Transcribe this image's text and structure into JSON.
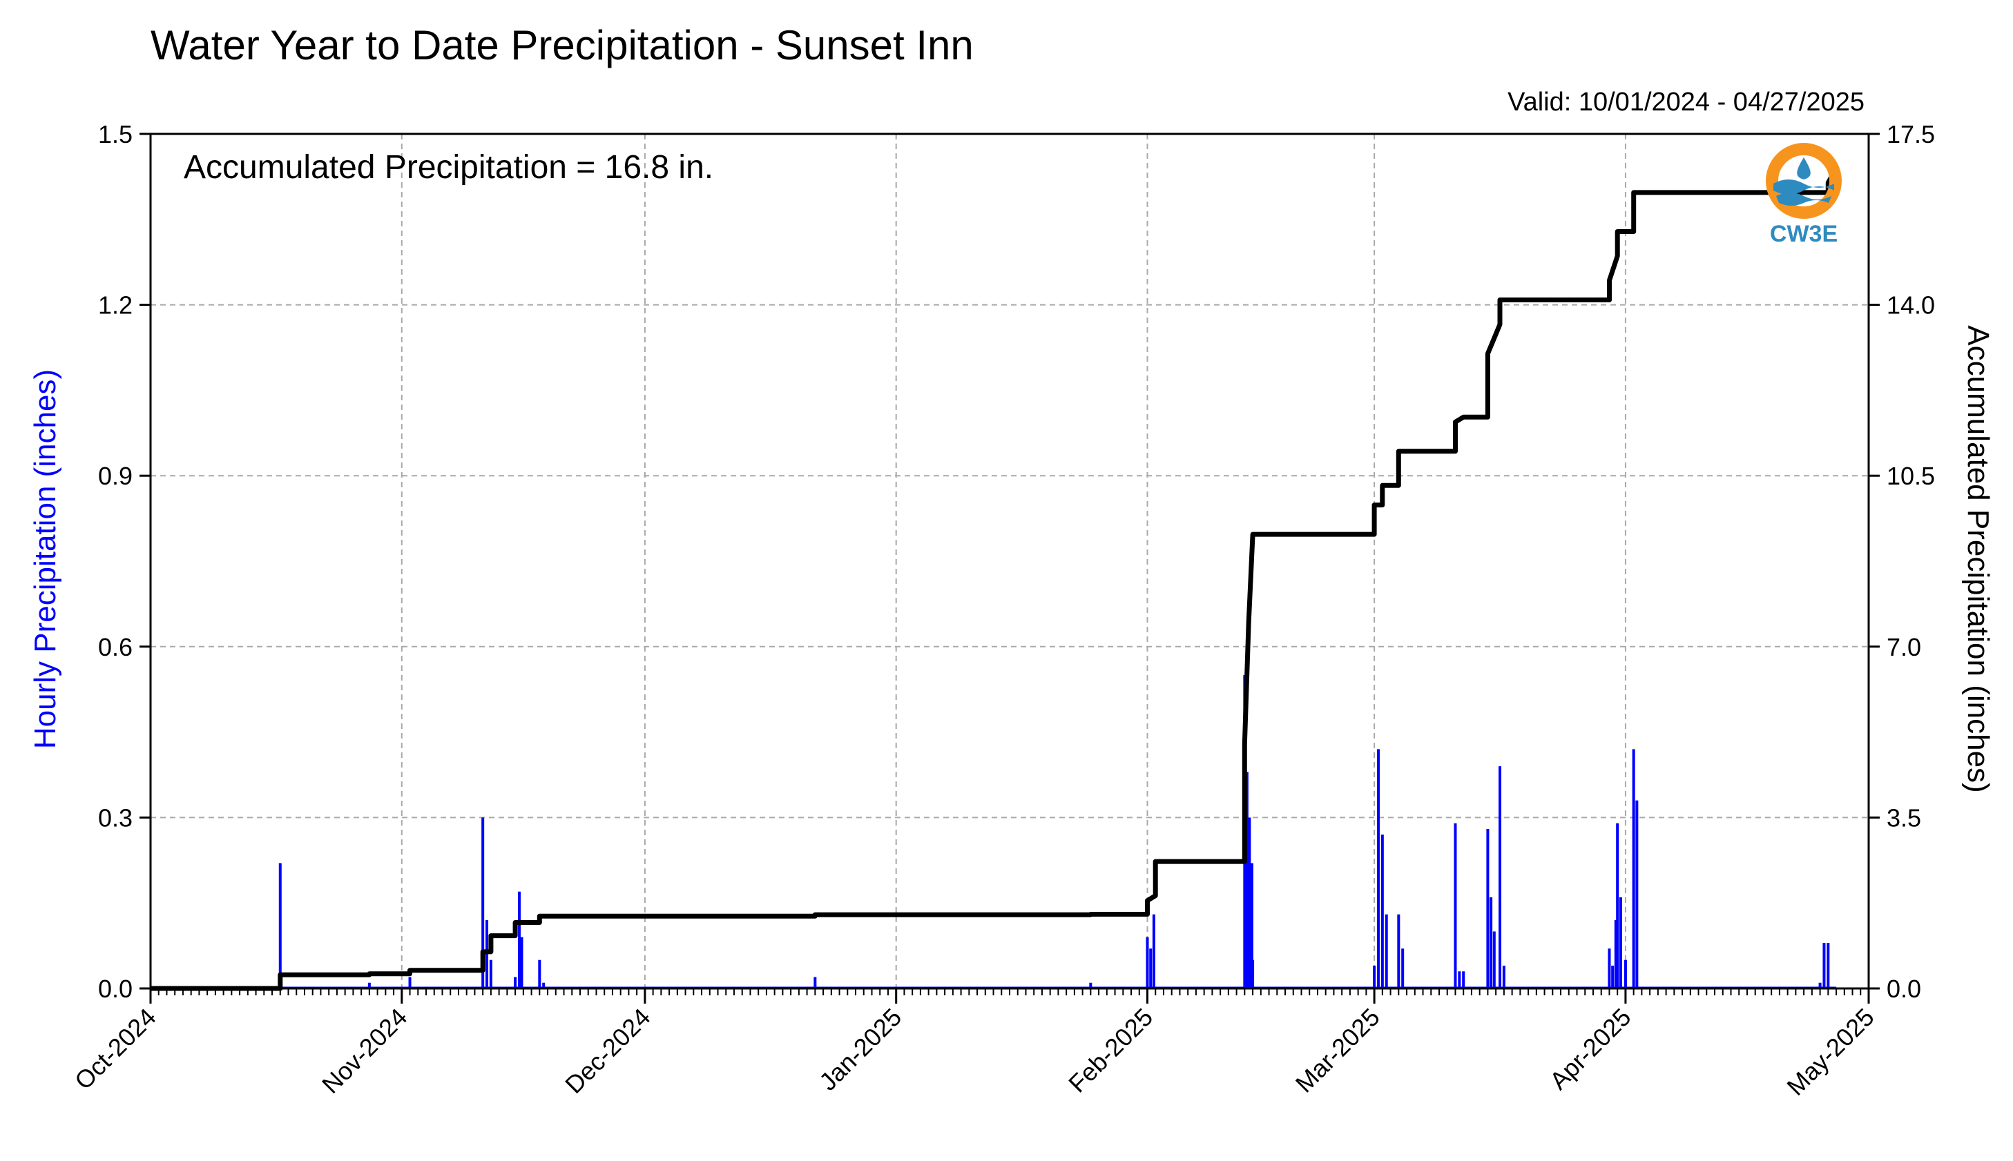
{
  "chart_data": {
    "type": "bar",
    "title": "Water Year to Date Precipitation - Sunset Inn",
    "subtitle": "Valid: 10/01/2024 - 04/27/2025",
    "annotation": "Accumulated Precipitation = 16.8 in.",
    "ylabel_left": "Hourly Precipitation (inches)",
    "ylabel_right": "Accumulated Precipitation (inches)",
    "xlim": [
      "2024-10-01",
      "2025-05-01"
    ],
    "ylim_left": [
      0,
      1.5
    ],
    "ylim_right": [
      0,
      17.5
    ],
    "grid": true,
    "x_ticks": [
      {
        "date": "2024-10-01",
        "label": "Oct-2024"
      },
      {
        "date": "2024-11-01",
        "label": "Nov-2024"
      },
      {
        "date": "2024-12-01",
        "label": "Dec-2024"
      },
      {
        "date": "2025-01-01",
        "label": "Jan-2025"
      },
      {
        "date": "2025-02-01",
        "label": "Feb-2025"
      },
      {
        "date": "2025-03-01",
        "label": "Mar-2025"
      },
      {
        "date": "2025-04-01",
        "label": "Apr-2025"
      },
      {
        "date": "2025-05-01",
        "label": "May-2025"
      }
    ],
    "y_ticks_left": [
      "0.0",
      "0.3",
      "0.6",
      "0.9",
      "1.2",
      "1.5"
    ],
    "y_ticks_right": [
      "0.0",
      "3.5",
      "7.0",
      "10.5",
      "14.0",
      "17.5"
    ],
    "series": [
      {
        "axis": "left",
        "color": "#0000ff",
        "kind": "bar",
        "points": [
          [
            "2024-10-17",
            0.22
          ],
          [
            "2024-10-28",
            0.01
          ],
          [
            "2024-11-02",
            0.02
          ],
          [
            "2024-11-11",
            0.3
          ],
          [
            "2024-11-11.5",
            0.12
          ],
          [
            "2024-11-12",
            0.05
          ],
          [
            "2024-11-15",
            0.02
          ],
          [
            "2024-11-15.5",
            0.17
          ],
          [
            "2024-11-15.8",
            0.09
          ],
          [
            "2024-11-18",
            0.05
          ],
          [
            "2024-11-18.5",
            0.01
          ],
          [
            "2024-12-22",
            0.02
          ],
          [
            "2025-01-25",
            0.01
          ],
          [
            "2025-02-01",
            0.09
          ],
          [
            "2025-02-01.4",
            0.07
          ],
          [
            "2025-02-01.8",
            0.13
          ],
          [
            "2025-02-13",
            0.55
          ],
          [
            "2025-02-13.3",
            0.38
          ],
          [
            "2025-02-13.6",
            0.3
          ],
          [
            "2025-02-13.9",
            0.22
          ],
          [
            "2025-02-14",
            0.05
          ],
          [
            "2025-03-01",
            0.04
          ],
          [
            "2025-03-01.5",
            0.42
          ],
          [
            "2025-03-02",
            0.27
          ],
          [
            "2025-03-02.5",
            0.13
          ],
          [
            "2025-03-04",
            0.13
          ],
          [
            "2025-03-04.5",
            0.07
          ],
          [
            "2025-03-11",
            0.29
          ],
          [
            "2025-03-11.5",
            0.03
          ],
          [
            "2025-03-12",
            0.03
          ],
          [
            "2025-03-15",
            0.28
          ],
          [
            "2025-03-15.4",
            0.16
          ],
          [
            "2025-03-15.8",
            0.1
          ],
          [
            "2025-03-16.5",
            0.39
          ],
          [
            "2025-03-17",
            0.04
          ],
          [
            "2025-03-30",
            0.07
          ],
          [
            "2025-03-30.4",
            0.04
          ],
          [
            "2025-03-30.8",
            0.12
          ],
          [
            "2025-03-31",
            0.29
          ],
          [
            "2025-03-31.4",
            0.16
          ],
          [
            "2025-04-01",
            0.05
          ],
          [
            "2025-04-02",
            0.42
          ],
          [
            "2025-04-02.4",
            0.33
          ],
          [
            "2025-04-25",
            0.01
          ],
          [
            "2025-04-25.5",
            0.08
          ],
          [
            "2025-04-26",
            0.08
          ]
        ]
      },
      {
        "axis": "right",
        "color": "#000000",
        "kind": "step",
        "points": [
          [
            "2024-10-01",
            0.0
          ],
          [
            "2024-10-17",
            0.0
          ],
          [
            "2024-10-17",
            0.28
          ],
          [
            "2024-10-28",
            0.28
          ],
          [
            "2024-10-28",
            0.3
          ],
          [
            "2024-11-02",
            0.3
          ],
          [
            "2024-11-02",
            0.37
          ],
          [
            "2024-11-11",
            0.37
          ],
          [
            "2024-11-11",
            0.75
          ],
          [
            "2024-11-12",
            0.75
          ],
          [
            "2024-11-12",
            1.08
          ],
          [
            "2024-11-15",
            1.08
          ],
          [
            "2024-11-15",
            1.35
          ],
          [
            "2024-11-18",
            1.35
          ],
          [
            "2024-11-18",
            1.48
          ],
          [
            "2024-12-22",
            1.48
          ],
          [
            "2024-12-22",
            1.51
          ],
          [
            "2025-01-25",
            1.51
          ],
          [
            "2025-01-25",
            1.52
          ],
          [
            "2025-02-01",
            1.52
          ],
          [
            "2025-02-01",
            1.8
          ],
          [
            "2025-02-02",
            1.9
          ],
          [
            "2025-02-02",
            2.6
          ],
          [
            "2025-02-13",
            2.6
          ],
          [
            "2025-02-13",
            5.0
          ],
          [
            "2025-02-13.5",
            7.5
          ],
          [
            "2025-02-14",
            9.3
          ],
          [
            "2025-03-01",
            9.3
          ],
          [
            "2025-03-01",
            9.9
          ],
          [
            "2025-03-02",
            9.9
          ],
          [
            "2025-03-02",
            10.3
          ],
          [
            "2025-03-04",
            10.3
          ],
          [
            "2025-03-04",
            11.0
          ],
          [
            "2025-03-11",
            11.0
          ],
          [
            "2025-03-11",
            11.6
          ],
          [
            "2025-03-12",
            11.7
          ],
          [
            "2025-03-15",
            11.7
          ],
          [
            "2025-03-15",
            13.0
          ],
          [
            "2025-03-16",
            13.4
          ],
          [
            "2025-03-16.5",
            13.6
          ],
          [
            "2025-03-16.5",
            14.1
          ],
          [
            "2025-03-30",
            14.1
          ],
          [
            "2025-03-30",
            14.5
          ],
          [
            "2025-03-31",
            15.0
          ],
          [
            "2025-03-31",
            15.5
          ],
          [
            "2025-04-02",
            15.5
          ],
          [
            "2025-04-02",
            16.3
          ],
          [
            "2025-04-26",
            16.3
          ],
          [
            "2025-04-26",
            16.5
          ],
          [
            "2025-04-27",
            16.8
          ]
        ]
      }
    ]
  },
  "logo": {
    "text": "CW3E",
    "ring_color": "#f7941d",
    "wave_color": "#2e8bc0"
  }
}
